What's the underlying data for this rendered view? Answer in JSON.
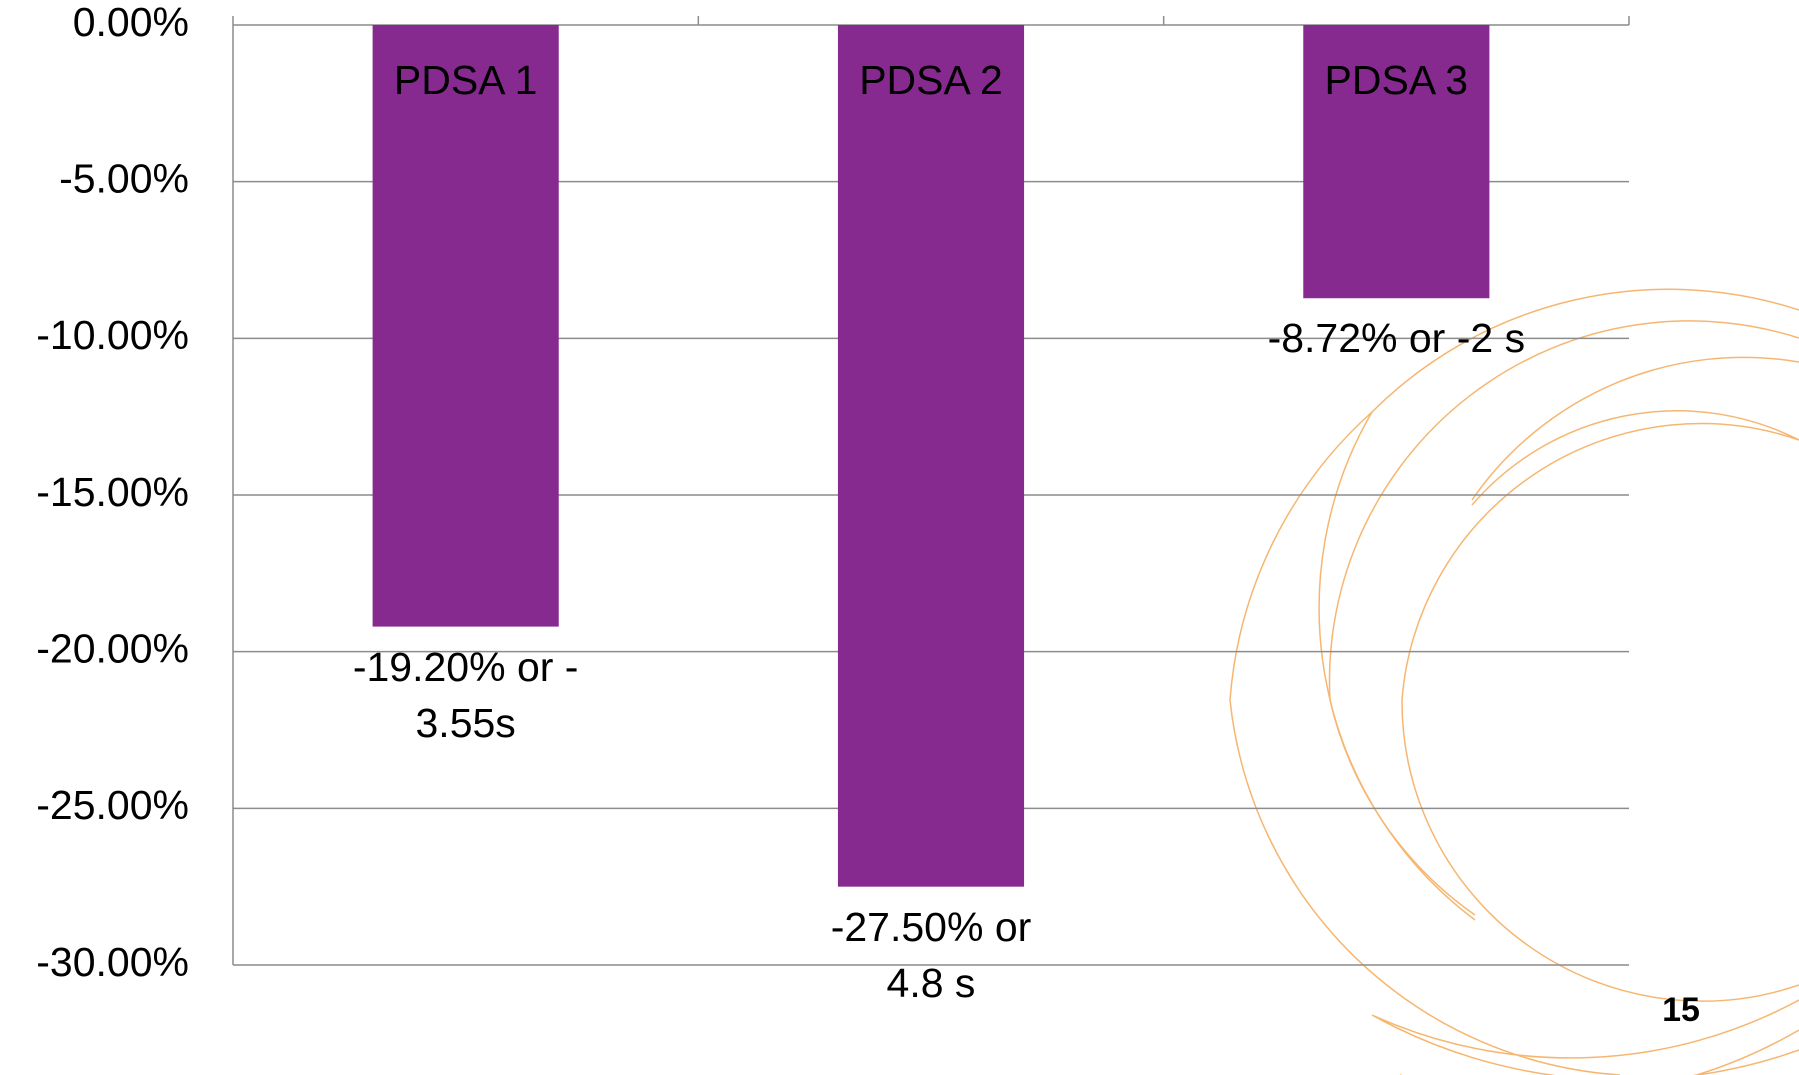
{
  "chart_data": {
    "type": "bar",
    "categories": [
      "PDSA 1",
      "PDSA 2",
      "PDSA 3"
    ],
    "values": [
      -19.2,
      -27.5,
      -8.72
    ],
    "value_labels": [
      "-19.20% or -\n3.55s",
      "-27.50% or\n4.8 s",
      "-8.72% or -2 s"
    ],
    "color": "#862a8f",
    "ylim": [
      -30,
      0
    ],
    "yticks": [
      {
        "value": 0,
        "label": "0.00%"
      },
      {
        "value": -5,
        "label": "-5.00%"
      },
      {
        "value": -10,
        "label": "-10.00%"
      },
      {
        "value": -15,
        "label": "-15.00%"
      },
      {
        "value": -20,
        "label": "-20.00%"
      },
      {
        "value": -25,
        "label": "-25.00%"
      },
      {
        "value": -30,
        "label": "-30.00%"
      }
    ],
    "grid": true
  },
  "page_number": "15"
}
